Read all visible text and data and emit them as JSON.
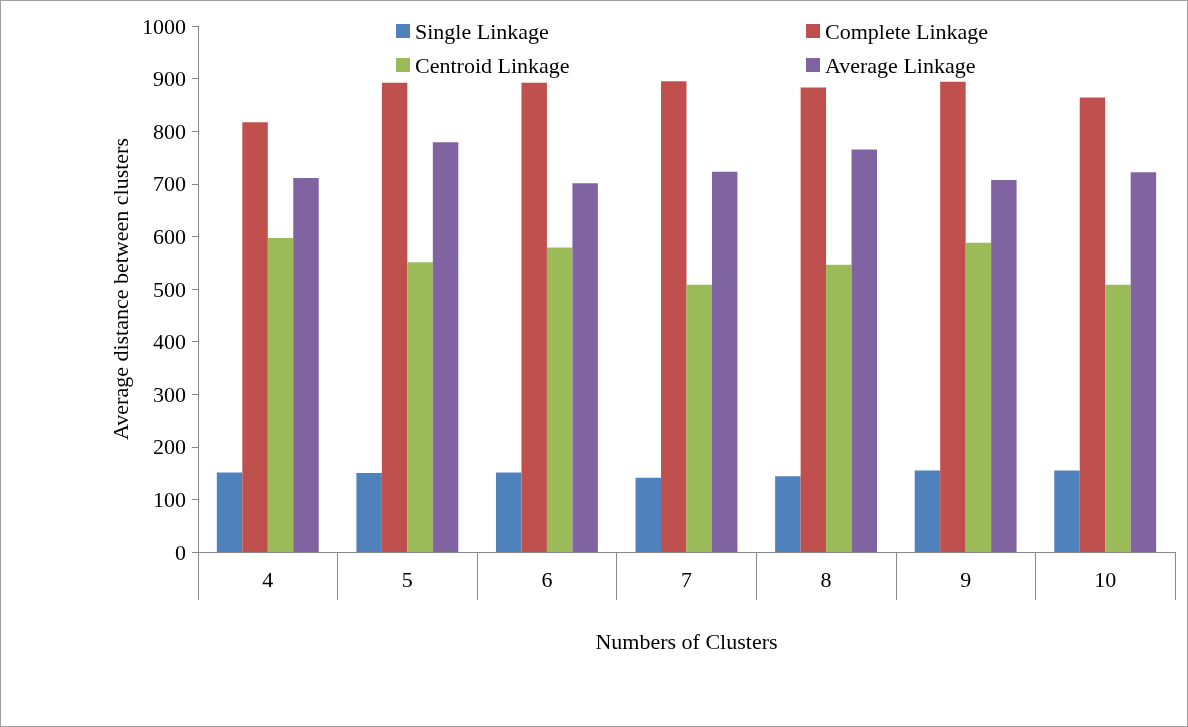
{
  "chart_data": {
    "type": "bar",
    "xlabel": "Numbers of Clusters",
    "ylabel": "Average distance between clusters",
    "categories": [
      "4",
      "5",
      "6",
      "7",
      "8",
      "9",
      "10"
    ],
    "series": [
      {
        "name": "Single Linkage",
        "color": "#4f81bd",
        "values": [
          151,
          150,
          151,
          141,
          144,
          155,
          155
        ]
      },
      {
        "name": "Complete Linkage",
        "color": "#c0504d",
        "values": [
          817,
          892,
          892,
          895,
          883,
          894,
          864
        ]
      },
      {
        "name": "Centroid Linkage",
        "color": "#9bbb59",
        "values": [
          597,
          551,
          579,
          508,
          546,
          588,
          508
        ]
      },
      {
        "name": "Average Linkage",
        "color": "#8064a2",
        "values": [
          711,
          779,
          701,
          723,
          765,
          707,
          722
        ]
      }
    ],
    "ylim": [
      0,
      1000
    ],
    "yticks": [
      0,
      100,
      200,
      300,
      400,
      500,
      600,
      700,
      800,
      900,
      1000
    ],
    "grid": false,
    "legend": "top"
  }
}
